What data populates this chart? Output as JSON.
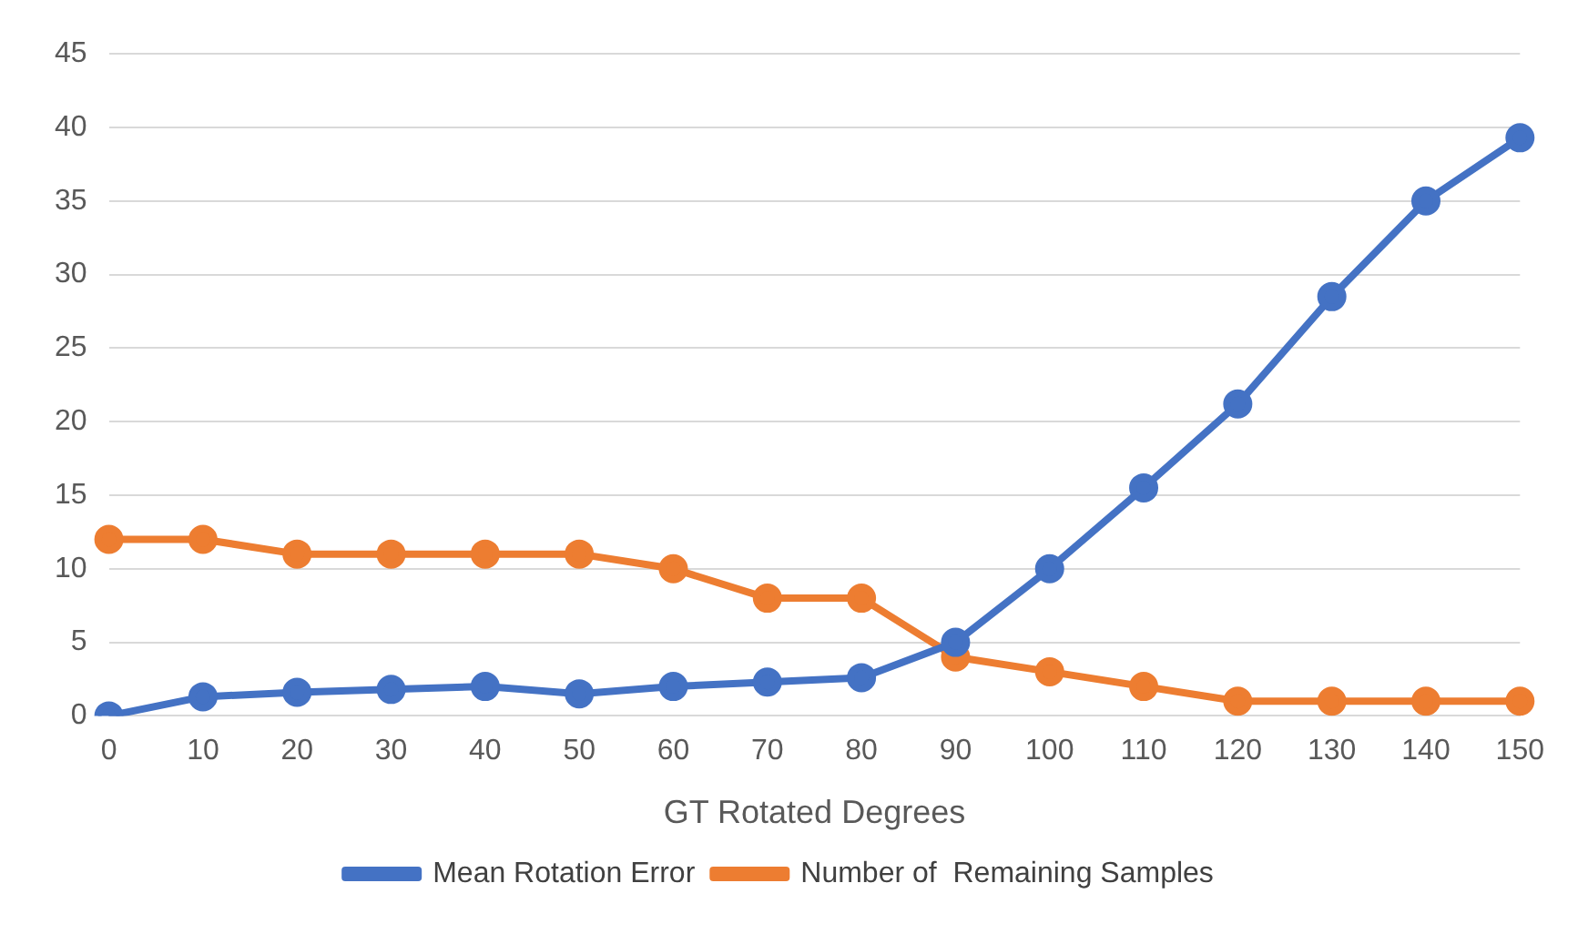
{
  "chart_data": {
    "type": "line",
    "xlabel": "GT Rotated Degrees",
    "categories": [
      "0",
      "10",
      "20",
      "30",
      "40",
      "50",
      "60",
      "70",
      "80",
      "90",
      "100",
      "110",
      "120",
      "130",
      "140",
      "150"
    ],
    "series": [
      {
        "name": "Mean Rotation Error",
        "color": "#4472c4",
        "values": [
          0,
          1.3,
          1.6,
          1.8,
          2.0,
          1.5,
          2.0,
          2.3,
          2.6,
          5.0,
          10.0,
          15.5,
          21.2,
          28.5,
          35.0,
          39.3
        ]
      },
      {
        "name": "Number of  Remaining Samples",
        "color": "#ed7d31",
        "values": [
          12,
          12,
          11,
          11,
          11,
          11,
          10,
          8,
          8,
          4,
          3,
          2,
          1,
          1,
          1,
          1
        ]
      }
    ],
    "ylim": [
      0,
      45
    ],
    "yticks": [
      0,
      5,
      10,
      15,
      20,
      25,
      30,
      35,
      40,
      45
    ],
    "grid": "y",
    "legend": "bottom",
    "marker": "circle",
    "line_style": "solid"
  }
}
